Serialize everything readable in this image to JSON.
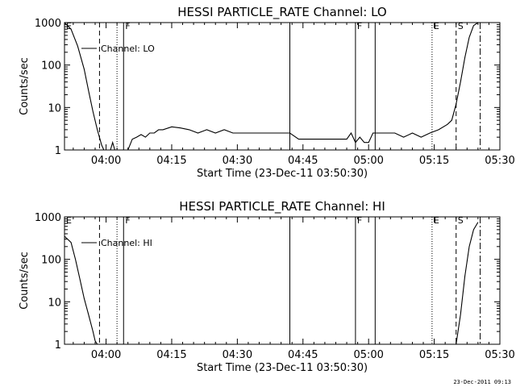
{
  "footer_timestamp": "23-Dec-2011 09:13",
  "chart_data": [
    {
      "type": "line",
      "title": "HESSI PARTICLE_RATE Channel: LO",
      "xlabel": "Start Time (23-Dec-11 03:50:30)",
      "ylabel": "Counts/sec",
      "yscale": "log",
      "ylim": [
        1,
        1000
      ],
      "xlim": [
        "03:50:30",
        "05:30:00"
      ],
      "yticks": [
        "1",
        "10",
        "100",
        "1000"
      ],
      "xticks": [
        "04:00",
        "04:15",
        "04:30",
        "04:45",
        "05:00",
        "05:15",
        "05:30"
      ],
      "legend": "Channel: LO",
      "legend_position": "top-left",
      "vlines": [
        {
          "t": "03:50:30",
          "style": "solid",
          "label": "E"
        },
        {
          "t": "03:58:30",
          "style": "dashed",
          "label": ""
        },
        {
          "t": "04:02:30",
          "style": "dotted",
          "label": ""
        },
        {
          "t": "04:04:00",
          "style": "solid",
          "label": "F"
        },
        {
          "t": "04:42:00",
          "style": "solid",
          "label": ""
        },
        {
          "t": "04:57:00",
          "style": "solid",
          "label": "F"
        },
        {
          "t": "05:01:30",
          "style": "solid",
          "label": ""
        },
        {
          "t": "05:14:30",
          "style": "dotted",
          "label": "E"
        },
        {
          "t": "05:20:00",
          "style": "dashed",
          "label": "S"
        },
        {
          "t": "05:25:30",
          "style": "dashdot",
          "label": ""
        }
      ],
      "series": [
        {
          "x": [
            "03:50:30",
            "03:52:00",
            "03:53:30",
            "03:55:00",
            "03:56:00",
            "03:57:00",
            "03:58:00",
            "03:59:00",
            "03:59:30",
            "04:00:00",
            "04:01:00",
            "04:01:30",
            "04:02:00",
            "04:03:00",
            "04:04:00",
            "04:05:00",
            "04:06:00",
            "04:07:00",
            "04:08:00",
            "04:09:00",
            "04:10:00",
            "04:11:00",
            "04:12:00",
            "04:13:00",
            "04:15:00",
            "04:17:00",
            "04:19:00",
            "04:21:00",
            "04:23:00",
            "04:25:00",
            "04:27:00",
            "04:29:00",
            "04:31:00",
            "04:33:00",
            "04:35:00",
            "04:37:00",
            "04:39:00",
            "04:41:00",
            "04:42:00",
            "04:44:00",
            "04:47:00",
            "04:50:00",
            "04:53:00",
            "04:55:00",
            "04:56:00",
            "04:57:00",
            "04:58:00",
            "04:59:00",
            "05:00:00",
            "05:01:00",
            "05:02:00",
            "05:04:00",
            "05:06:00",
            "05:08:00",
            "05:10:00",
            "05:12:00",
            "05:14:00",
            "05:16:00",
            "05:18:00",
            "05:19:00",
            "05:20:00",
            "05:21:00",
            "05:22:00",
            "05:23:00",
            "05:24:00",
            "05:25:00"
          ],
          "y": [
            1000,
            700,
            280,
            80,
            25,
            8,
            3,
            1.3,
            1,
            1,
            1,
            1.5,
            1,
            1,
            1,
            1,
            1.8,
            2,
            2.3,
            2,
            2.5,
            2.5,
            3,
            3,
            3.5,
            3.3,
            3,
            2.5,
            3,
            2.5,
            3,
            2.5,
            2.5,
            2.5,
            2.5,
            2.5,
            2.5,
            2.5,
            2.5,
            1.8,
            1.8,
            1.8,
            1.8,
            1.8,
            2.5,
            1.5,
            2,
            1.5,
            1.5,
            2.5,
            2.5,
            2.5,
            2.5,
            2,
            2.5,
            2,
            2.5,
            3,
            4,
            5,
            12,
            40,
            150,
            450,
            850,
            1000
          ]
        }
      ]
    },
    {
      "type": "line",
      "title": "HESSI PARTICLE_RATE Channel: HI",
      "xlabel": "Start Time (23-Dec-11 03:50:30)",
      "ylabel": "Counts/sec",
      "yscale": "log",
      "ylim": [
        1,
        1000
      ],
      "xlim": [
        "03:50:30",
        "05:30:00"
      ],
      "yticks": [
        "1",
        "10",
        "100",
        "1000"
      ],
      "xticks": [
        "04:00",
        "04:15",
        "04:30",
        "04:45",
        "05:00",
        "05:15",
        "05:30"
      ],
      "legend": "Channel: HI",
      "legend_position": "top-left",
      "vlines": [
        {
          "t": "03:50:30",
          "style": "solid",
          "label": "E"
        },
        {
          "t": "03:58:30",
          "style": "dashed",
          "label": ""
        },
        {
          "t": "04:02:30",
          "style": "dotted",
          "label": ""
        },
        {
          "t": "04:04:00",
          "style": "solid",
          "label": "F"
        },
        {
          "t": "04:42:00",
          "style": "solid",
          "label": ""
        },
        {
          "t": "04:57:00",
          "style": "solid",
          "label": "F"
        },
        {
          "t": "05:01:30",
          "style": "solid",
          "label": ""
        },
        {
          "t": "05:14:30",
          "style": "dotted",
          "label": "E"
        },
        {
          "t": "05:20:00",
          "style": "dashed",
          "label": "S"
        },
        {
          "t": "05:25:30",
          "style": "dashdot",
          "label": ""
        }
      ],
      "series": [
        {
          "x": [
            "03:50:30",
            "03:52:00",
            "03:53:00",
            "03:54:00",
            "03:55:00",
            "03:56:00",
            "03:57:00",
            "03:57:30",
            "03:58:00",
            "05:20:00",
            "05:21:00",
            "05:22:00",
            "05:23:00",
            "05:24:00",
            "05:25:00"
          ],
          "y": [
            350,
            250,
            100,
            35,
            12,
            5,
            2,
            1.2,
            1,
            1,
            5,
            40,
            200,
            500,
            750
          ]
        }
      ]
    }
  ]
}
